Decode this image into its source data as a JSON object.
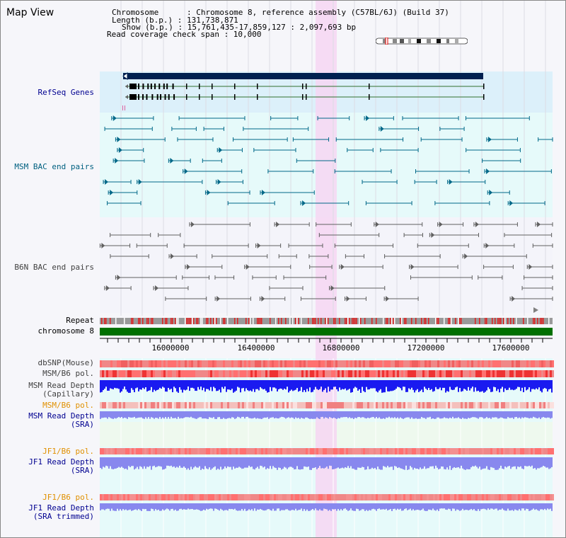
{
  "title": "Map View",
  "header": {
    "chromosome": "Chromosome      : Chromosome 8, reference assembly (C57BL/6J) (Build 37)",
    "length": "Length (b.p.) : 131,738,871",
    "show": "Show (b.p.) : 15,761,435-17,859,127 : 2,097,693 bp",
    "read_coverage": "Read coverage check span : 10,000"
  },
  "tracks": {
    "refseq": "RefSeq Genes",
    "msm_bac": "MSM BAC end pairs",
    "b6n_bac": "B6N BAC end pairs",
    "repeat": "Repeat",
    "chromosome": "chromosome 8",
    "dbsnp": "dbSNP(Mouse)",
    "msm_b6_pol_1": "MSM/B6 pol.",
    "msm_read_depth_cap_1": "MSM Read Depth",
    "msm_read_depth_cap_2": "(Capillary)",
    "msm_b6_pol_2": "MSM/B6 pol.",
    "msm_read_depth_sra_1": "MSM Read Depth",
    "msm_read_depth_sra_2": "(SRA)",
    "jf1_b6_pol_1": "JF1/B6 pol.",
    "jf1_read_depth_sra_1": "JF1 Read Depth",
    "jf1_read_depth_sra_2": "(SRA)",
    "jf1_b6_pol_2": "JF1/B6 pol.",
    "jf1_read_depth_trim_1": "JF1 Read Depth",
    "jf1_read_depth_trim_2": "(SRA trimmed)"
  },
  "axis_ticks": [
    "16000000",
    "16400000",
    "16800000",
    "17200000",
    "17600000"
  ],
  "colors": {
    "refseq_bg": "#dcf0fa",
    "track_bg": "#e6fafa",
    "highlight": "#f6d6f2",
    "gene_dark": "#002050",
    "msm_bac": "#006888",
    "b6n_bac": "#606060",
    "chromosome_bar": "#007000",
    "snp_red": "#ee3333",
    "depth_blue": "#1a1af0",
    "depth_lav": "#8888ee",
    "label_navy": "#000090",
    "label_teal": "#006080",
    "label_gray": "#404040",
    "label_orange": "#e09000"
  }
}
